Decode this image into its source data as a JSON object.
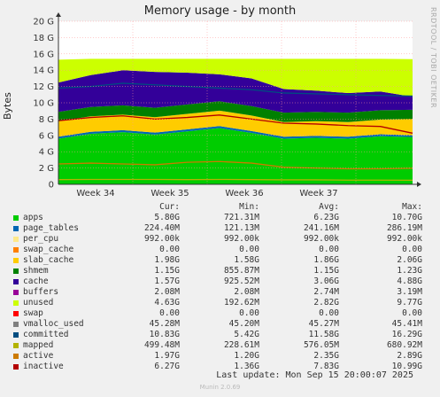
{
  "title": "Memory usage - by month",
  "ylabel": "Bytes",
  "sidebar_text": "RRDTOOL / TOBI OETIKER",
  "headers": {
    "cur": "Cur:",
    "min": "Min:",
    "avg": "Avg:",
    "max": "Max:"
  },
  "legend": [
    {
      "name": "apps",
      "color": "#00cc00",
      "cur": "5.80G",
      "min": "721.31M",
      "avg": "6.23G",
      "max": "10.70G"
    },
    {
      "name": "page_tables",
      "color": "#0066b3",
      "cur": "224.40M",
      "min": "121.13M",
      "avg": "241.16M",
      "max": "286.19M"
    },
    {
      "name": "per_cpu",
      "color": "#ffe88a",
      "cur": "992.00k",
      "min": "992.00k",
      "avg": "992.00k",
      "max": "992.00k"
    },
    {
      "name": "swap_cache",
      "color": "#ff8000",
      "cur": "0.00",
      "min": "0.00",
      "avg": "0.00",
      "max": "0.00"
    },
    {
      "name": "slab_cache",
      "color": "#ffcc00",
      "cur": "1.98G",
      "min": "1.58G",
      "avg": "1.86G",
      "max": "2.06G"
    },
    {
      "name": "shmem",
      "color": "#008000",
      "cur": "1.15G",
      "min": "855.87M",
      "avg": "1.15G",
      "max": "1.23G"
    },
    {
      "name": "cache",
      "color": "#330099",
      "cur": "1.57G",
      "min": "925.52M",
      "avg": "3.06G",
      "max": "4.88G"
    },
    {
      "name": "buffers",
      "color": "#990099",
      "cur": "2.08M",
      "min": "2.08M",
      "avg": "2.74M",
      "max": "3.19M"
    },
    {
      "name": "unused",
      "color": "#ccff00",
      "cur": "4.63G",
      "min": "192.62M",
      "avg": "2.82G",
      "max": "9.77G"
    },
    {
      "name": "swap",
      "color": "#ff0000",
      "cur": "0.00",
      "min": "0.00",
      "avg": "0.00",
      "max": "0.00"
    },
    {
      "name": "vmalloc_used",
      "color": "#808080",
      "cur": "45.28M",
      "min": "45.20M",
      "avg": "45.27M",
      "max": "45.41M"
    },
    {
      "name": "committed",
      "color": "#004d80",
      "cur": "10.83G",
      "min": "5.42G",
      "avg": "11.58G",
      "max": "16.29G"
    },
    {
      "name": "mapped",
      "color": "#b3b300",
      "cur": "499.48M",
      "min": "228.61M",
      "avg": "576.05M",
      "max": "680.92M"
    },
    {
      "name": "active",
      "color": "#cc7a00",
      "cur": "1.97G",
      "min": "1.20G",
      "avg": "2.35G",
      "max": "2.89G"
    },
    {
      "name": "inactive",
      "color": "#b30000",
      "cur": "6.27G",
      "min": "1.36G",
      "avg": "7.83G",
      "max": "10.99G"
    }
  ],
  "last_update": "Last update: Mon Sep 15 20:00:07 2025",
  "footer": "Munin 2.0.69",
  "chart_data": {
    "type": "area",
    "ylim": [
      0,
      20
    ],
    "y_ticks": [
      0,
      2,
      4,
      6,
      8,
      10,
      12,
      14,
      16,
      18,
      20
    ],
    "y_tick_labels": [
      "0",
      "2 G",
      "4 G",
      "6 G",
      "8 G",
      "10 G",
      "12 G",
      "14 G",
      "16 G",
      "18 G",
      "20 G"
    ],
    "x_ticks": [
      "Week 34",
      "Week 35",
      "Week 36",
      "Week 37"
    ],
    "stack_order": [
      "apps",
      "page_tables",
      "per_cpu",
      "swap_cache",
      "slab_cache",
      "shmem",
      "cache",
      "buffers",
      "unused",
      "swap"
    ],
    "series": [
      {
        "name": "apps",
        "values": [
          5.6,
          6.2,
          6.4,
          6.1,
          6.5,
          6.9,
          6.3,
          5.6,
          5.7,
          5.6,
          5.9,
          5.8
        ]
      },
      {
        "name": "page_tables",
        "values": [
          0.24,
          0.24,
          0.24,
          0.24,
          0.24,
          0.24,
          0.24,
          0.24,
          0.24,
          0.24,
          0.24,
          0.22
        ]
      },
      {
        "name": "slab_cache",
        "values": [
          1.9,
          1.9,
          1.9,
          1.9,
          1.9,
          1.9,
          1.9,
          1.8,
          1.8,
          1.8,
          1.8,
          1.98
        ]
      },
      {
        "name": "shmem",
        "values": [
          1.15,
          1.15,
          1.15,
          1.15,
          1.15,
          1.15,
          1.15,
          1.15,
          1.15,
          1.15,
          1.15,
          1.15
        ]
      },
      {
        "name": "cache",
        "values": [
          3.6,
          3.9,
          4.3,
          4.4,
          3.9,
          3.3,
          3.4,
          2.9,
          2.6,
          2.4,
          2.3,
          1.6
        ]
      },
      {
        "name": "unused",
        "values": [
          2.8,
          2.0,
          1.4,
          1.6,
          1.7,
          1.9,
          2.4,
          3.7,
          3.9,
          4.2,
          4.0,
          4.6
        ]
      },
      {
        "name": "committed",
        "values": [
          11.8,
          12.0,
          12.4,
          12.2,
          12.0,
          11.8,
          11.6,
          11.2,
          11.1,
          11.0,
          10.9,
          10.83
        ]
      },
      {
        "name": "active",
        "values": [
          2.5,
          2.6,
          2.5,
          2.4,
          2.7,
          2.8,
          2.6,
          2.1,
          2.0,
          1.9,
          1.9,
          1.97
        ]
      },
      {
        "name": "inactive",
        "values": [
          7.8,
          8.2,
          8.4,
          8.0,
          8.2,
          8.5,
          8.0,
          7.5,
          7.4,
          7.2,
          7.1,
          6.27
        ]
      },
      {
        "name": "mapped",
        "values": [
          0.58,
          0.6,
          0.6,
          0.6,
          0.58,
          0.6,
          0.58,
          0.55,
          0.55,
          0.52,
          0.52,
          0.5
        ]
      }
    ]
  }
}
